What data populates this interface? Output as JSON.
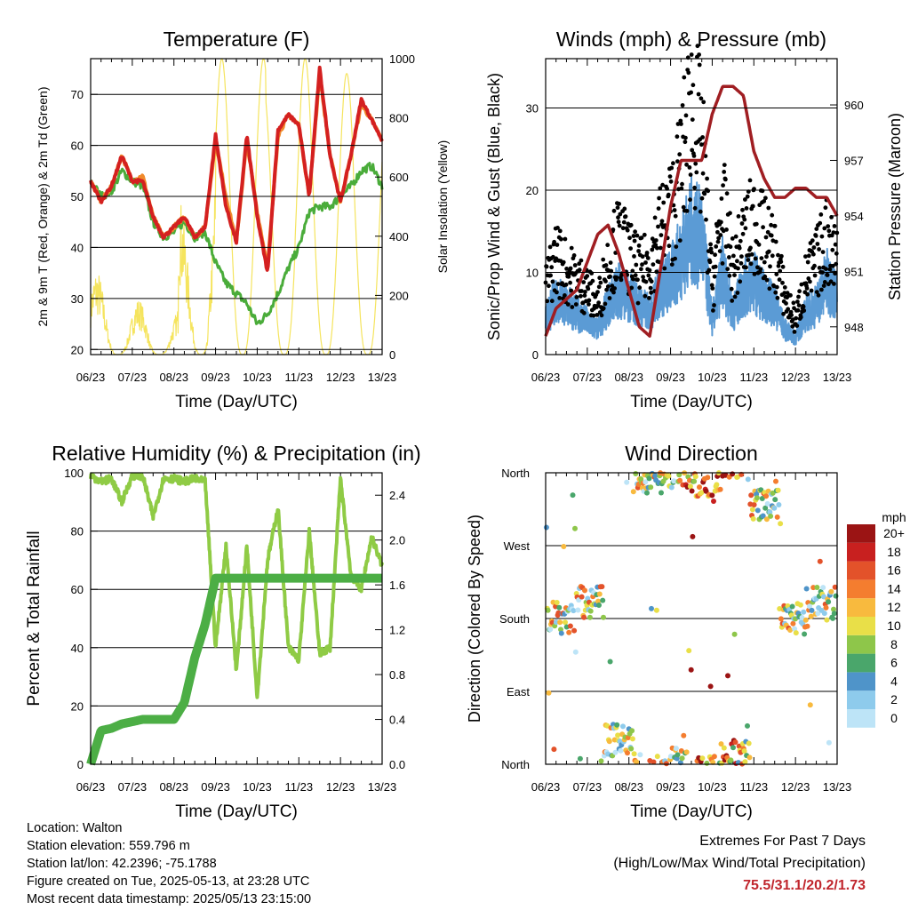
{
  "colors": {
    "red": "#d42020",
    "orange": "#f08a2c",
    "green": "#4aac3a",
    "yellow": "#f5e45e",
    "black": "#000000",
    "blue": "#5b9bd5",
    "maroon": "#a01e22",
    "rh": "#8fcb45",
    "rain": "#4cae45"
  },
  "time_ticks": [
    "06/23",
    "07/23",
    "08/23",
    "09/23",
    "10/23",
    "11/23",
    "12/23",
    "13/23"
  ],
  "footer": {
    "location": "Location: Walton",
    "elevation": "Station elevation: 559.796 m",
    "latlon": "Station lat/lon: 42.2396; -75.1788",
    "created": "Figure created on Tue, 2025-05-13, at 23:28 UTC",
    "recent": "Most recent data timestamp: 2025/05/13 23:15:00",
    "extremes_title": "Extremes For Past 7 Days",
    "extremes_sub": "(High/Low/Max Wind/Total Precipitation)",
    "extremes_values": "75.5/31.1/20.2/1.73"
  },
  "chart_data": [
    {
      "type": "line",
      "title": "Temperature (F)",
      "xlabel": "Time (Day/UTC)",
      "ylabel": "2m & 9m T (Red, Orange) & 2m Td (Green)",
      "ylabel_right": "Solar Insolation (Yellow)",
      "ylim": [
        19,
        77
      ],
      "yticks": [
        20,
        30,
        40,
        50,
        60,
        70
      ],
      "ylim_right": [
        0,
        1000
      ],
      "yticks_right": [
        0,
        200,
        400,
        600,
        800,
        1000
      ],
      "x": [
        0,
        0.25,
        0.5,
        0.75,
        1,
        1.25,
        1.5,
        1.75,
        2,
        2.25,
        2.5,
        2.75,
        3,
        3.25,
        3.5,
        3.75,
        4,
        4.25,
        4.5,
        4.75,
        5,
        5.25,
        5.5,
        5.75,
        6,
        6.25,
        6.5,
        6.75,
        7
      ],
      "series": [
        {
          "name": "T 2m",
          "values": [
            53,
            49,
            52,
            58,
            53,
            53,
            46,
            42,
            44,
            46,
            42,
            44,
            62,
            48,
            41,
            62,
            46,
            35,
            63,
            66,
            64,
            50,
            75,
            58,
            49,
            58,
            69,
            65,
            61
          ]
        },
        {
          "name": "T 9m",
          "values": [
            53,
            49,
            52,
            58,
            53,
            54,
            46,
            42,
            44,
            46,
            42,
            44,
            61,
            50,
            41,
            61,
            47,
            36,
            62,
            66,
            64,
            50,
            74,
            58,
            49,
            58,
            68,
            65,
            61
          ]
        },
        {
          "name": "Td 2m",
          "values": [
            53,
            50,
            51,
            55,
            53,
            52,
            45,
            42,
            43,
            45,
            42,
            43,
            37,
            33,
            31,
            29,
            25,
            27,
            31,
            36,
            40,
            47,
            48,
            48,
            50,
            52,
            55,
            56,
            52
          ]
        },
        {
          "name": "Solar",
          "axis": "right",
          "hourly_peaks": [
            320,
            210,
            180,
            580,
            1000,
            1000,
            900,
            1000,
            950,
            920
          ]
        }
      ]
    },
    {
      "type": "line",
      "title": "Winds (mph) & Pressure (mb)",
      "xlabel": "Time (Day/UTC)",
      "ylabel": "Sonic/Prop Wind & Gust (Blue, Black)",
      "ylabel_right": "Station Pressure (Maroon)",
      "ylim": [
        0,
        36
      ],
      "yticks": [
        0,
        10,
        20,
        30
      ],
      "ylim_right": [
        946.5,
        962.5
      ],
      "yticks_right": [
        948,
        951,
        954,
        957,
        960
      ],
      "x": [
        0,
        0.25,
        0.5,
        0.75,
        1,
        1.25,
        1.5,
        1.75,
        2,
        2.25,
        2.5,
        2.75,
        3,
        3.25,
        3.5,
        3.75,
        4,
        4.25,
        4.5,
        4.75,
        5,
        5.25,
        5.5,
        5.75,
        6,
        6.25,
        6.5,
        6.75,
        7
      ],
      "series": [
        {
          "name": "Wind",
          "values": [
            4,
            7,
            6,
            5,
            4,
            3,
            6,
            8,
            7,
            6,
            5,
            8,
            9,
            12,
            15,
            14,
            4,
            10,
            5,
            8,
            9,
            7,
            6,
            3,
            2,
            5,
            6,
            9,
            7
          ]
        },
        {
          "name": "Gust",
          "values": [
            8,
            12,
            10,
            9,
            8,
            6,
            11,
            14,
            12,
            10,
            11,
            15,
            17,
            22,
            30,
            25,
            8,
            18,
            10,
            14,
            16,
            14,
            12,
            7,
            4,
            9,
            11,
            14,
            12
          ]
        },
        {
          "name": "Pressure",
          "axis": "right",
          "values": [
            947.5,
            949,
            949.5,
            950,
            951.5,
            953,
            953.5,
            952,
            950,
            948,
            947.5,
            951,
            954.5,
            957,
            957,
            957,
            959.5,
            961,
            961,
            960.5,
            957.5,
            956,
            955,
            955,
            955.5,
            955.5,
            955,
            955,
            954
          ]
        }
      ]
    },
    {
      "type": "line",
      "title": "Relative Humidity (%) & Precipitation (in)",
      "xlabel": "Time (Day/UTC)",
      "ylabel": "Percent & Total Rainfall",
      "ylim": [
        0,
        100
      ],
      "yticks": [
        0,
        20,
        40,
        60,
        80,
        100
      ],
      "ylim_right": [
        0,
        2.6
      ],
      "yticks_right": [
        0.0,
        0.4,
        0.8,
        1.2,
        1.6,
        2.0,
        2.4
      ],
      "x": [
        0,
        0.25,
        0.5,
        0.75,
        1,
        1.25,
        1.5,
        1.75,
        2,
        2.25,
        2.5,
        2.75,
        3,
        3.25,
        3.5,
        3.75,
        4,
        4.25,
        4.5,
        4.75,
        5,
        5.25,
        5.5,
        5.75,
        6,
        6.25,
        6.5,
        6.75,
        7
      ],
      "series": [
        {
          "name": "RH",
          "values": [
            99,
            97,
            98,
            90,
            99,
            99,
            85,
            98,
            98,
            97,
            98,
            97,
            40,
            75,
            32,
            75,
            23,
            70,
            88,
            40,
            36,
            80,
            38,
            40,
            98,
            65,
            60,
            78,
            68
          ]
        },
        {
          "name": "Rain",
          "axis": "right",
          "values": [
            0,
            0.3,
            0.32,
            0.36,
            0.38,
            0.4,
            0.4,
            0.4,
            0.4,
            0.55,
            0.95,
            1.25,
            1.66,
            1.66,
            1.66,
            1.66,
            1.66,
            1.66,
            1.66,
            1.66,
            1.66,
            1.66,
            1.66,
            1.66,
            1.66,
            1.66,
            1.66,
            1.66,
            1.66
          ]
        }
      ]
    },
    {
      "type": "scatter",
      "title": "Wind Direction",
      "xlabel": "Time (Day/UTC)",
      "ylabel": "Direction (Colored By Speed)",
      "ylim": [
        0,
        360
      ],
      "ylabels": [
        "North",
        "East",
        "South",
        "West",
        "North"
      ],
      "legend_title": "mph",
      "legend_labels": [
        "0",
        "2",
        "4",
        "6",
        "8",
        "10",
        "12",
        "14",
        "16",
        "18",
        "20+"
      ],
      "legend_colors": [
        "#bde4f7",
        "#8ecbec",
        "#4f94c9",
        "#4aa66b",
        "#8ec64a",
        "#e9df48",
        "#f8ba3e",
        "#f47d2f",
        "#e3522a",
        "#c8201f",
        "#9b1414"
      ],
      "direction_by_day": [
        180,
        200,
        30,
        355,
        360,
        350,
        10,
        320,
        180,
        200
      ]
    }
  ]
}
